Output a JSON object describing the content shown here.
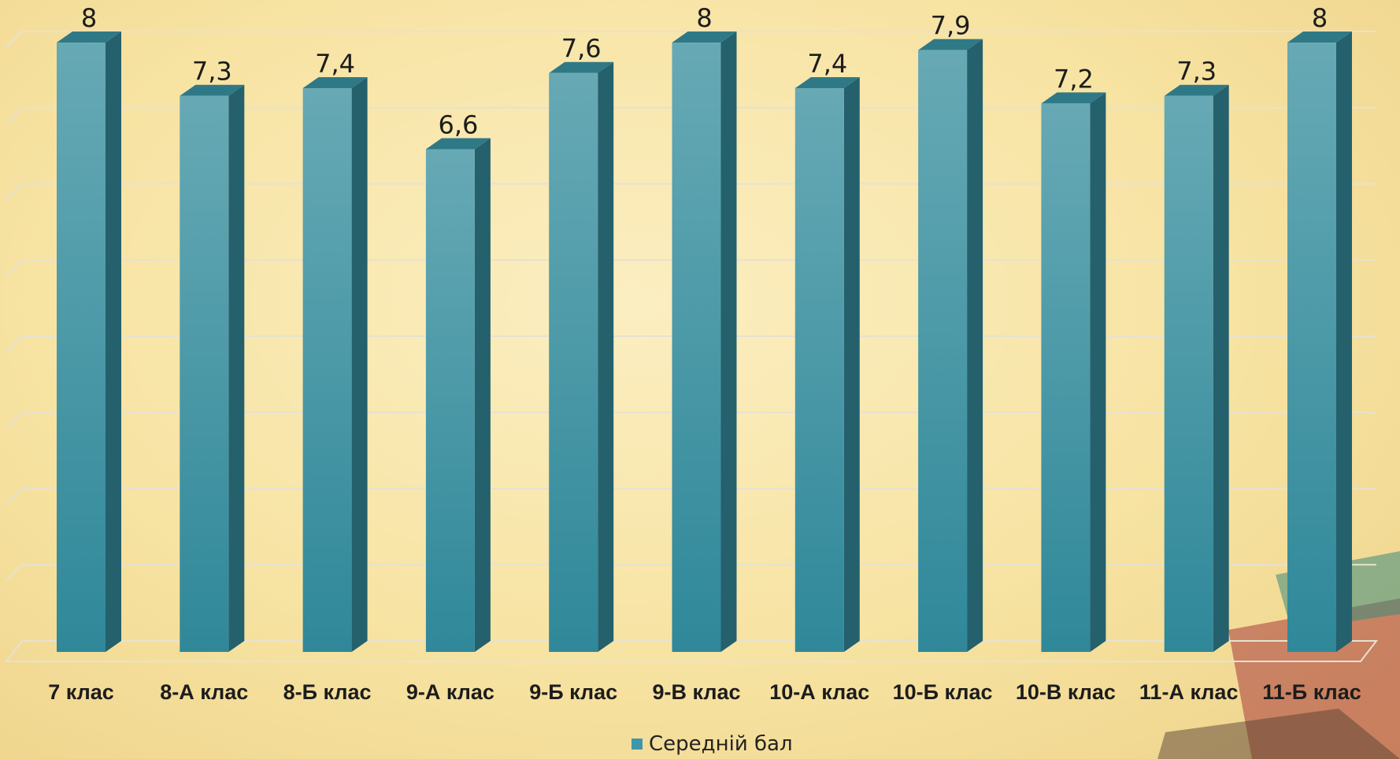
{
  "chart_data": {
    "type": "bar",
    "categories": [
      "7 клас",
      "8-А клас",
      "8-Б клас",
      "9-А клас",
      "9-Б клас",
      "9-В клас",
      "10-А клас",
      "10-Б клас",
      "10-В клас",
      "11-А клас",
      "11-Б клас"
    ],
    "value_labels": [
      "8",
      "7,3",
      "7,4",
      "6,6",
      "7,6",
      "8",
      "7,4",
      "7,9",
      "7,2",
      "7,3",
      "8"
    ],
    "series": [
      {
        "name": "Середній бал",
        "values": [
          8,
          7.3,
          7.4,
          6.6,
          7.6,
          8,
          7.4,
          7.9,
          7.2,
          7.3,
          8
        ]
      }
    ],
    "ylim": [
      0,
      8
    ],
    "grid": true,
    "legend": "bottom",
    "colors": {
      "bar_front": "#3e97a8",
      "bar_side": "#25606d",
      "bar_top": "#2f7987",
      "gridline": "#e6e2d2"
    }
  }
}
